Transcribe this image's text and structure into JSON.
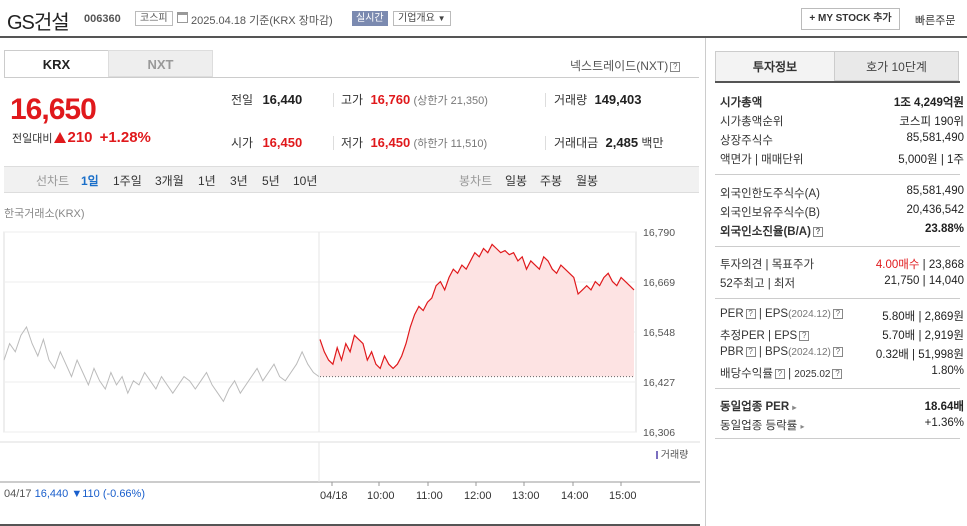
{
  "header": {
    "title": "GS건설",
    "code": "006360",
    "market": "코스피",
    "date": "2025.04.18",
    "basis": "기준(KRX 장마감)",
    "realtime": "실시간",
    "company_info": "기업개요",
    "my_stock": "MY STOCK 추가",
    "quick_order": "빠른주문"
  },
  "tabs": {
    "krx": "KRX",
    "nxt": "NXT",
    "nextrade": "넥스트레이드(NXT)"
  },
  "price": {
    "current": "16,650",
    "change_label": "전일대비",
    "change": "210",
    "change_pct": "+1.28%"
  },
  "quote": {
    "prev_label": "전일",
    "prev": "16,440",
    "high_label": "고가",
    "high": "16,760",
    "upper_limit": "(상한가 21,350)",
    "volume_label": "거래량",
    "volume": "149,403",
    "open_label": "시가",
    "open": "16,450",
    "low_label": "저가",
    "low": "16,450",
    "lower_limit": "(하한가 11,510)",
    "amount_label": "거래대금",
    "amount": "2,485",
    "amount_unit": "백만"
  },
  "chart_tabs": {
    "line": "선차트",
    "d1": "1일",
    "w1": "1주일",
    "m3": "3개월",
    "y1": "1년",
    "y3": "3년",
    "y5": "5년",
    "y10": "10년",
    "candle": "봉차트",
    "daily": "일봉",
    "weekly": "주봉",
    "monthly": "월봉"
  },
  "source": "한국거래소(KRX)",
  "chart_data": {
    "type": "line",
    "y_ticks": [
      "16,790",
      "16,669",
      "16,548",
      "16,427",
      "16,306"
    ],
    "ylim": [
      16306,
      16790
    ],
    "x_labels": [
      "04/17",
      "04/18",
      "10:00",
      "11:00",
      "12:00",
      "13:00",
      "14:00",
      "15:00"
    ],
    "volume_label": "거래량",
    "prev_day_info": {
      "date": "04/17",
      "close": "16,440",
      "change": "110",
      "change_pct": "(-0.66%)"
    },
    "baseline": 16440,
    "prev_day_series": [
      16480,
      16520,
      16500,
      16540,
      16560,
      16520,
      16490,
      16530,
      16480,
      16460,
      16500,
      16470,
      16440,
      16480,
      16450,
      16420,
      16460,
      16430,
      16410,
      16450,
      16420,
      16440,
      16400,
      16430,
      16420,
      16450,
      16430,
      16410,
      16440,
      16420,
      16400,
      16420,
      16440,
      16430,
      16410,
      16430,
      16450,
      16420,
      16400,
      16380,
      16410,
      16430,
      16400,
      16420,
      16440,
      16460,
      16430,
      16450,
      16470,
      16440,
      16430,
      16450,
      16470,
      16500,
      16470,
      16450,
      16440
    ],
    "today_series": [
      16530,
      16500,
      16480,
      16470,
      16510,
      16480,
      16520,
      16500,
      16540,
      16530,
      16520,
      16480,
      16500,
      16470,
      16460,
      16490,
      16470,
      16460,
      16470,
      16490,
      16520,
      16560,
      16590,
      16610,
      16600,
      16620,
      16630,
      16660,
      16670,
      16650,
      16680,
      16700,
      16690,
      16710,
      16700,
      16720,
      16740,
      16730,
      16750,
      16740,
      16760,
      16750,
      16740,
      16745,
      16735,
      16740,
      16720,
      16730,
      16700,
      16720,
      16710,
      16700,
      16730,
      16720,
      16700,
      16690,
      16710,
      16700,
      16690,
      16680,
      16640,
      16650,
      16660,
      16650,
      16670,
      16660,
      16680,
      16690,
      16670,
      16660,
      16680,
      16670,
      16660,
      16650
    ],
    "series": [
      {
        "name": "거래량"
      }
    ]
  },
  "right": {
    "tab1": "투자정보",
    "tab2": "호가 10단계",
    "market_cap_label": "시가총액",
    "market_cap": "1조 4,249억원",
    "cap_rank_label": "시가총액순위",
    "cap_rank": "코스피 190위",
    "shares_label": "상장주식수",
    "shares": "85,581,490",
    "face_label": "액면가",
    "unit_label": "매매단위",
    "face": "5,000원",
    "unit": "1주",
    "foreign_limit_label": "외국인한도주식수(A)",
    "foreign_limit": "85,581,490",
    "foreign_hold_label": "외국인보유주식수(B)",
    "foreign_hold": "20,436,542",
    "foreign_ratio_label": "외국인소진율(B/A)",
    "foreign_ratio": "23.88%",
    "opinion_label": "투자의견",
    "target_label": "목표주가",
    "opinion": "4.00매수",
    "target": "23,868",
    "w52_high_label": "52주최고",
    "w52_low_label": "최저",
    "w52_high": "21,750",
    "w52_low": "14,040",
    "per_label": "PER",
    "eps_label": "EPS",
    "eps_year": "(2024.12)",
    "per": "5.80배",
    "eps": "2,869원",
    "est_per_label": "추정PER",
    "est_eps_label": "EPS",
    "est_per": "5.70배",
    "est_eps": "2,919원",
    "pbr_label": "PBR",
    "bps_label": "BPS",
    "bps_year": "(2024.12)",
    "pbr": "0.32배",
    "bps": "51,998원",
    "div_label": "배당수익률",
    "div_year": "2025.02",
    "div": "1.80%",
    "ind_per_label": "동일업종 PER",
    "ind_per": "18.64배",
    "ind_change_label": "동일업종 등락률",
    "ind_change": "+1.36%"
  }
}
